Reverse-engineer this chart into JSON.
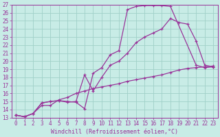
{
  "background_color": "#c8ece6",
  "grid_color": "#a0d0c8",
  "line_color": "#993399",
  "spine_color": "#993399",
  "xlim": [
    -0.5,
    23.5
  ],
  "ylim": [
    13,
    27
  ],
  "xlabel": "Windchill (Refroidissement éolien,°C)",
  "xticks": [
    0,
    1,
    2,
    3,
    4,
    5,
    6,
    7,
    8,
    9,
    10,
    11,
    12,
    13,
    14,
    15,
    16,
    17,
    18,
    19,
    20,
    21,
    22,
    23
  ],
  "yticks": [
    13,
    14,
    15,
    16,
    17,
    18,
    19,
    20,
    21,
    22,
    23,
    24,
    25,
    26,
    27
  ],
  "curve1_x": [
    0,
    1,
    2,
    3,
    4,
    5,
    6,
    7,
    8,
    9,
    10,
    11,
    12,
    13,
    14,
    15,
    16,
    17,
    18,
    21,
    22,
    23
  ],
  "curve1_y": [
    13.3,
    13.1,
    13.5,
    14.8,
    15.0,
    15.1,
    15.0,
    14.9,
    14.1,
    18.5,
    19.2,
    20.8,
    21.3,
    26.4,
    26.8,
    26.9,
    26.9,
    26.9,
    26.8,
    19.5,
    19.2,
    19.3
  ],
  "curve2_x": [
    0,
    1,
    2,
    3,
    4,
    5,
    6,
    7,
    8,
    9,
    10,
    11,
    12,
    13,
    14,
    15,
    16,
    17,
    18,
    19,
    20,
    21,
    22,
    23
  ],
  "curve2_y": [
    13.3,
    13.1,
    13.5,
    14.8,
    15.0,
    15.1,
    14.9,
    15.0,
    18.3,
    16.3,
    18.0,
    19.5,
    20.0,
    21.0,
    22.3,
    23.0,
    23.5,
    24.0,
    25.3,
    24.8,
    24.6,
    22.5,
    19.5,
    19.3
  ],
  "curve3_x": [
    0,
    1,
    2,
    3,
    4,
    5,
    6,
    7,
    8,
    9,
    10,
    11,
    12,
    13,
    14,
    15,
    16,
    17,
    18,
    19,
    20,
    21,
    22,
    23
  ],
  "curve3_y": [
    13.3,
    13.1,
    13.5,
    14.5,
    14.5,
    15.2,
    15.5,
    16.0,
    16.3,
    16.6,
    16.8,
    17.0,
    17.2,
    17.5,
    17.7,
    17.9,
    18.1,
    18.3,
    18.6,
    18.9,
    19.1,
    19.2,
    19.3,
    19.4
  ],
  "tick_fontsize": 5.5,
  "xlabel_fontsize": 6.0
}
